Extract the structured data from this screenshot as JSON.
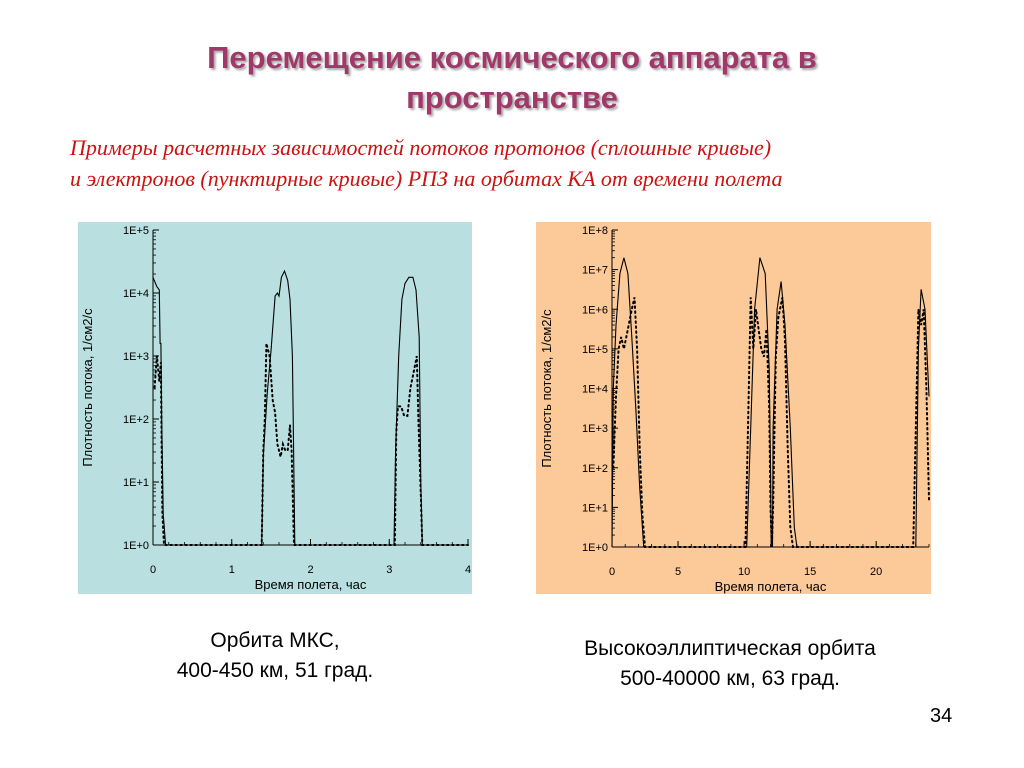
{
  "slide": {
    "title_line1": "Перемещение космического аппарата в",
    "title_line2": "пространстве",
    "subtitle_line1": "Примеры расчетных зависимостей потоков протонов (сплошные кривые)",
    "subtitle_line2": "и электронов (пунктирные кривые) РПЗ на орбитах КА  от  времени полета",
    "caption_left_line1": "Орбита МКС,",
    "caption_left_line2": "400-450 км, 51 град.",
    "caption_right_line1": "Высокоэллиптическая орбита",
    "caption_right_line2": "500-40000 км, 63 град.",
    "page_number": "34"
  },
  "chart_data": [
    {
      "type": "line",
      "background": "#b9dfe0",
      "xlabel": "Время полета, час",
      "ylabel": "Плотность потока, 1/см2/с",
      "xlim": [
        0,
        4
      ],
      "ylim_log10": [
        0,
        5
      ],
      "yscale": "log",
      "x_ticks": [
        "0",
        "1",
        "2",
        "3",
        "4"
      ],
      "y_ticks": [
        "1E+0",
        "1E+1",
        "1E+2",
        "1E+3",
        "1E+4",
        "1E+5"
      ],
      "series": [
        {
          "style": "solid",
          "points": [
            [
              0,
              4.25
            ],
            [
              0.05,
              4.1
            ],
            [
              0.08,
              4.05
            ],
            [
              0.09,
              3.2
            ],
            [
              0.1,
              3.2
            ],
            [
              0.11,
              2.0
            ],
            [
              0.13,
              0.5
            ],
            [
              0.16,
              0
            ],
            [
              1.38,
              0
            ],
            [
              1.4,
              1.4
            ],
            [
              1.45,
              2.4
            ],
            [
              1.5,
              3.1
            ],
            [
              1.55,
              3.95
            ],
            [
              1.58,
              4.0
            ],
            [
              1.6,
              3.95
            ],
            [
              1.63,
              4.25
            ],
            [
              1.67,
              4.35
            ],
            [
              1.71,
              4.2
            ],
            [
              1.74,
              3.9
            ],
            [
              1.77,
              3.0
            ],
            [
              1.79,
              1.0
            ],
            [
              1.8,
              0
            ],
            [
              3.06,
              0
            ],
            [
              3.08,
              1.5
            ],
            [
              3.12,
              3.0
            ],
            [
              3.16,
              3.9
            ],
            [
              3.2,
              4.15
            ],
            [
              3.25,
              4.25
            ],
            [
              3.3,
              4.25
            ],
            [
              3.34,
              4.05
            ],
            [
              3.38,
              3.3
            ],
            [
              3.4,
              1.0
            ],
            [
              3.42,
              0
            ],
            [
              4.0,
              0
            ]
          ]
        },
        {
          "style": "dotted",
          "points": [
            [
              0.02,
              2.5
            ],
            [
              0.05,
              3.0
            ],
            [
              0.08,
              2.6
            ],
            [
              0.1,
              2.9
            ],
            [
              0.11,
              1.5
            ],
            [
              0.12,
              0.5
            ],
            [
              0.14,
              0
            ],
            [
              1.38,
              0
            ],
            [
              1.4,
              1.5
            ],
            [
              1.42,
              2.0
            ],
            [
              1.44,
              3.2
            ],
            [
              1.48,
              3.0
            ],
            [
              1.52,
              2.3
            ],
            [
              1.55,
              2.1
            ],
            [
              1.58,
              1.6
            ],
            [
              1.62,
              1.4
            ],
            [
              1.65,
              1.6
            ],
            [
              1.68,
              1.5
            ],
            [
              1.71,
              1.5
            ],
            [
              1.74,
              1.9
            ],
            [
              1.76,
              1.5
            ],
            [
              1.78,
              0.5
            ],
            [
              1.79,
              0
            ],
            [
              3.07,
              0
            ],
            [
              3.09,
              1.8
            ],
            [
              3.11,
              2.2
            ],
            [
              3.15,
              2.2
            ],
            [
              3.19,
              2.05
            ],
            [
              3.23,
              2.05
            ],
            [
              3.27,
              2.5
            ],
            [
              3.32,
              2.8
            ],
            [
              3.35,
              3.0
            ],
            [
              3.37,
              2.0
            ],
            [
              3.4,
              0.8
            ],
            [
              3.42,
              0
            ],
            [
              4.0,
              0
            ]
          ]
        }
      ]
    },
    {
      "type": "line",
      "background": "#fcc998",
      "xlabel": "Время полета, час",
      "ylabel": "Плотность потока, 1/см2/с",
      "xlim": [
        0,
        24
      ],
      "ylim_log10": [
        0,
        8
      ],
      "yscale": "log",
      "x_ticks": [
        "0",
        "5",
        "10",
        "15",
        "20"
      ],
      "x_tick_values": [
        0,
        5,
        10,
        15,
        20
      ],
      "y_ticks": [
        "1E+0",
        "1E+1",
        "1E+2",
        "1E+3",
        "1E+4",
        "1E+5",
        "1E+6",
        "1E+7",
        "1E+8"
      ],
      "series": [
        {
          "style": "solid",
          "points": [
            [
              0,
              0
            ],
            [
              0.1,
              4.0
            ],
            [
              0.3,
              5.6
            ],
            [
              0.6,
              6.9
            ],
            [
              0.9,
              7.3
            ],
            [
              1.2,
              6.9
            ],
            [
              1.5,
              5.3
            ],
            [
              1.8,
              3.5
            ],
            [
              2.1,
              1.5
            ],
            [
              2.4,
              0
            ],
            [
              10.2,
              0
            ],
            [
              10.5,
              3.0
            ],
            [
              10.8,
              6.0
            ],
            [
              11.2,
              7.3
            ],
            [
              11.6,
              6.9
            ],
            [
              11.9,
              4.5
            ],
            [
              12.0,
              2.0
            ],
            [
              12.05,
              0
            ],
            [
              12.15,
              0
            ],
            [
              12.2,
              3.0
            ],
            [
              12.5,
              6.0
            ],
            [
              12.8,
              6.7
            ],
            [
              13.1,
              5.6
            ],
            [
              13.5,
              3.0
            ],
            [
              13.8,
              0.5
            ],
            [
              14.0,
              0
            ],
            [
              23.0,
              0
            ],
            [
              23.2,
              5.0
            ],
            [
              23.4,
              6.5
            ],
            [
              23.7,
              6.0
            ],
            [
              23.9,
              4.5
            ],
            [
              24.0,
              3.8
            ]
          ]
        },
        {
          "style": "dotted",
          "points": [
            [
              0.1,
              2.0
            ],
            [
              0.3,
              3.8
            ],
            [
              0.5,
              5.0
            ],
            [
              0.7,
              5.3
            ],
            [
              0.9,
              5.0
            ],
            [
              1.2,
              5.5
            ],
            [
              1.5,
              6.0
            ],
            [
              1.7,
              6.3
            ],
            [
              1.9,
              5.0
            ],
            [
              2.1,
              2.5
            ],
            [
              2.3,
              0.8
            ],
            [
              2.5,
              0
            ],
            [
              10.1,
              0
            ],
            [
              10.3,
              3.0
            ],
            [
              10.5,
              6.3
            ],
            [
              10.7,
              5.0
            ],
            [
              10.9,
              6.0
            ],
            [
              11.1,
              5.5
            ],
            [
              11.3,
              5.0
            ],
            [
              11.5,
              4.8
            ],
            [
              11.7,
              5.5
            ],
            [
              11.9,
              3.5
            ],
            [
              12.0,
              1.0
            ],
            [
              12.1,
              0
            ],
            [
              12.2,
              1.0
            ],
            [
              12.4,
              4.8
            ],
            [
              12.6,
              5.8
            ],
            [
              12.9,
              6.3
            ],
            [
              13.1,
              5.2
            ],
            [
              13.3,
              2.5
            ],
            [
              13.5,
              0.5
            ],
            [
              13.7,
              0
            ],
            [
              22.8,
              0
            ],
            [
              23.0,
              3.0
            ],
            [
              23.2,
              6.0
            ],
            [
              23.4,
              5.6
            ],
            [
              23.6,
              6.0
            ],
            [
              23.8,
              4.0
            ],
            [
              24.0,
              1.2
            ]
          ]
        }
      ]
    }
  ]
}
